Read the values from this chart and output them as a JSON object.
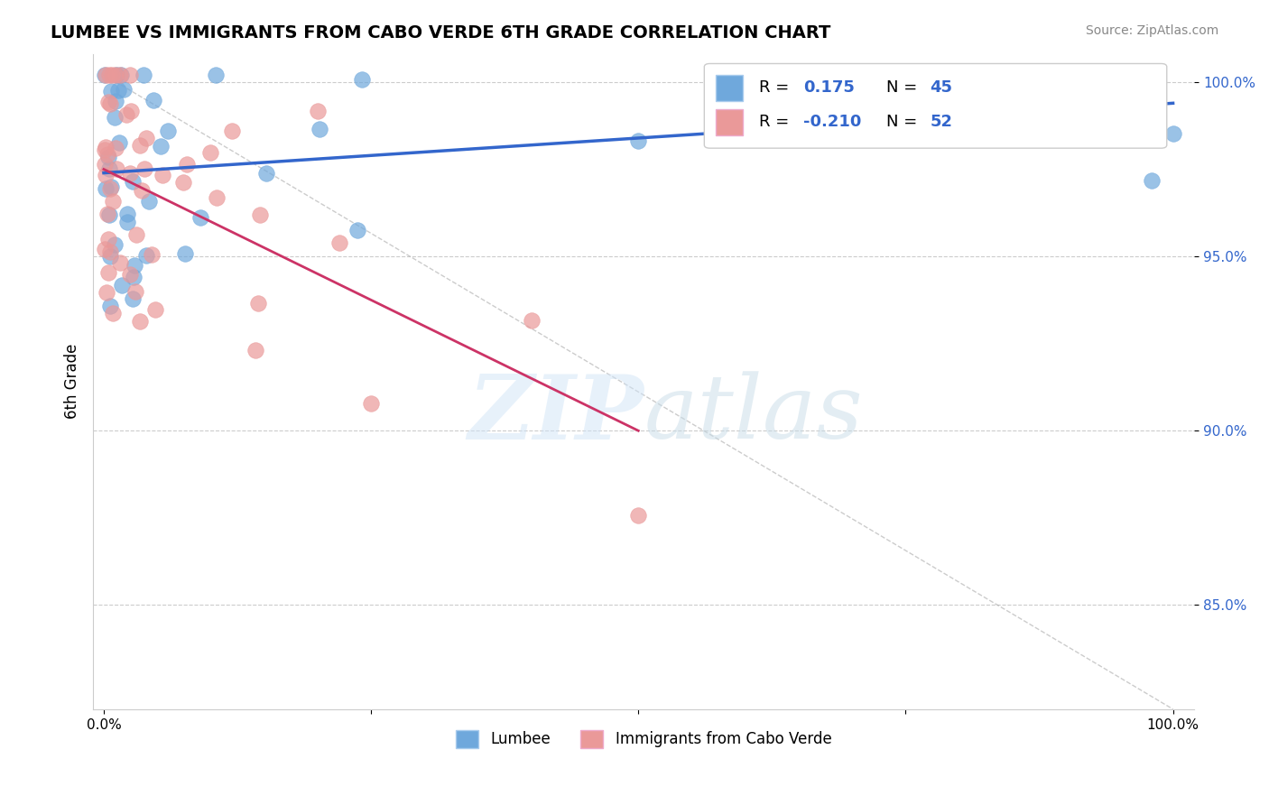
{
  "title": "LUMBEE VS IMMIGRANTS FROM CABO VERDE 6TH GRADE CORRELATION CHART",
  "source": "Source: ZipAtlas.com",
  "ylabel": "6th Grade",
  "xlim": [
    0.0,
    1.0
  ],
  "ylim": [
    0.82,
    1.008
  ],
  "yticks": [
    0.85,
    0.9,
    0.95,
    1.0
  ],
  "ytick_labels": [
    "85.0%",
    "90.0%",
    "95.0%",
    "100.0%"
  ],
  "xticks": [
    0.0,
    0.25,
    0.5,
    0.75,
    1.0
  ],
  "xtick_labels": [
    "0.0%",
    "",
    "",
    "",
    "100.0%"
  ],
  "lumbee_R": 0.175,
  "lumbee_N": 45,
  "cabo_R": -0.21,
  "cabo_N": 52,
  "blue_color": "#6fa8dc",
  "pink_color": "#ea9999",
  "blue_line_color": "#3366cc",
  "pink_line_color": "#cc3366"
}
